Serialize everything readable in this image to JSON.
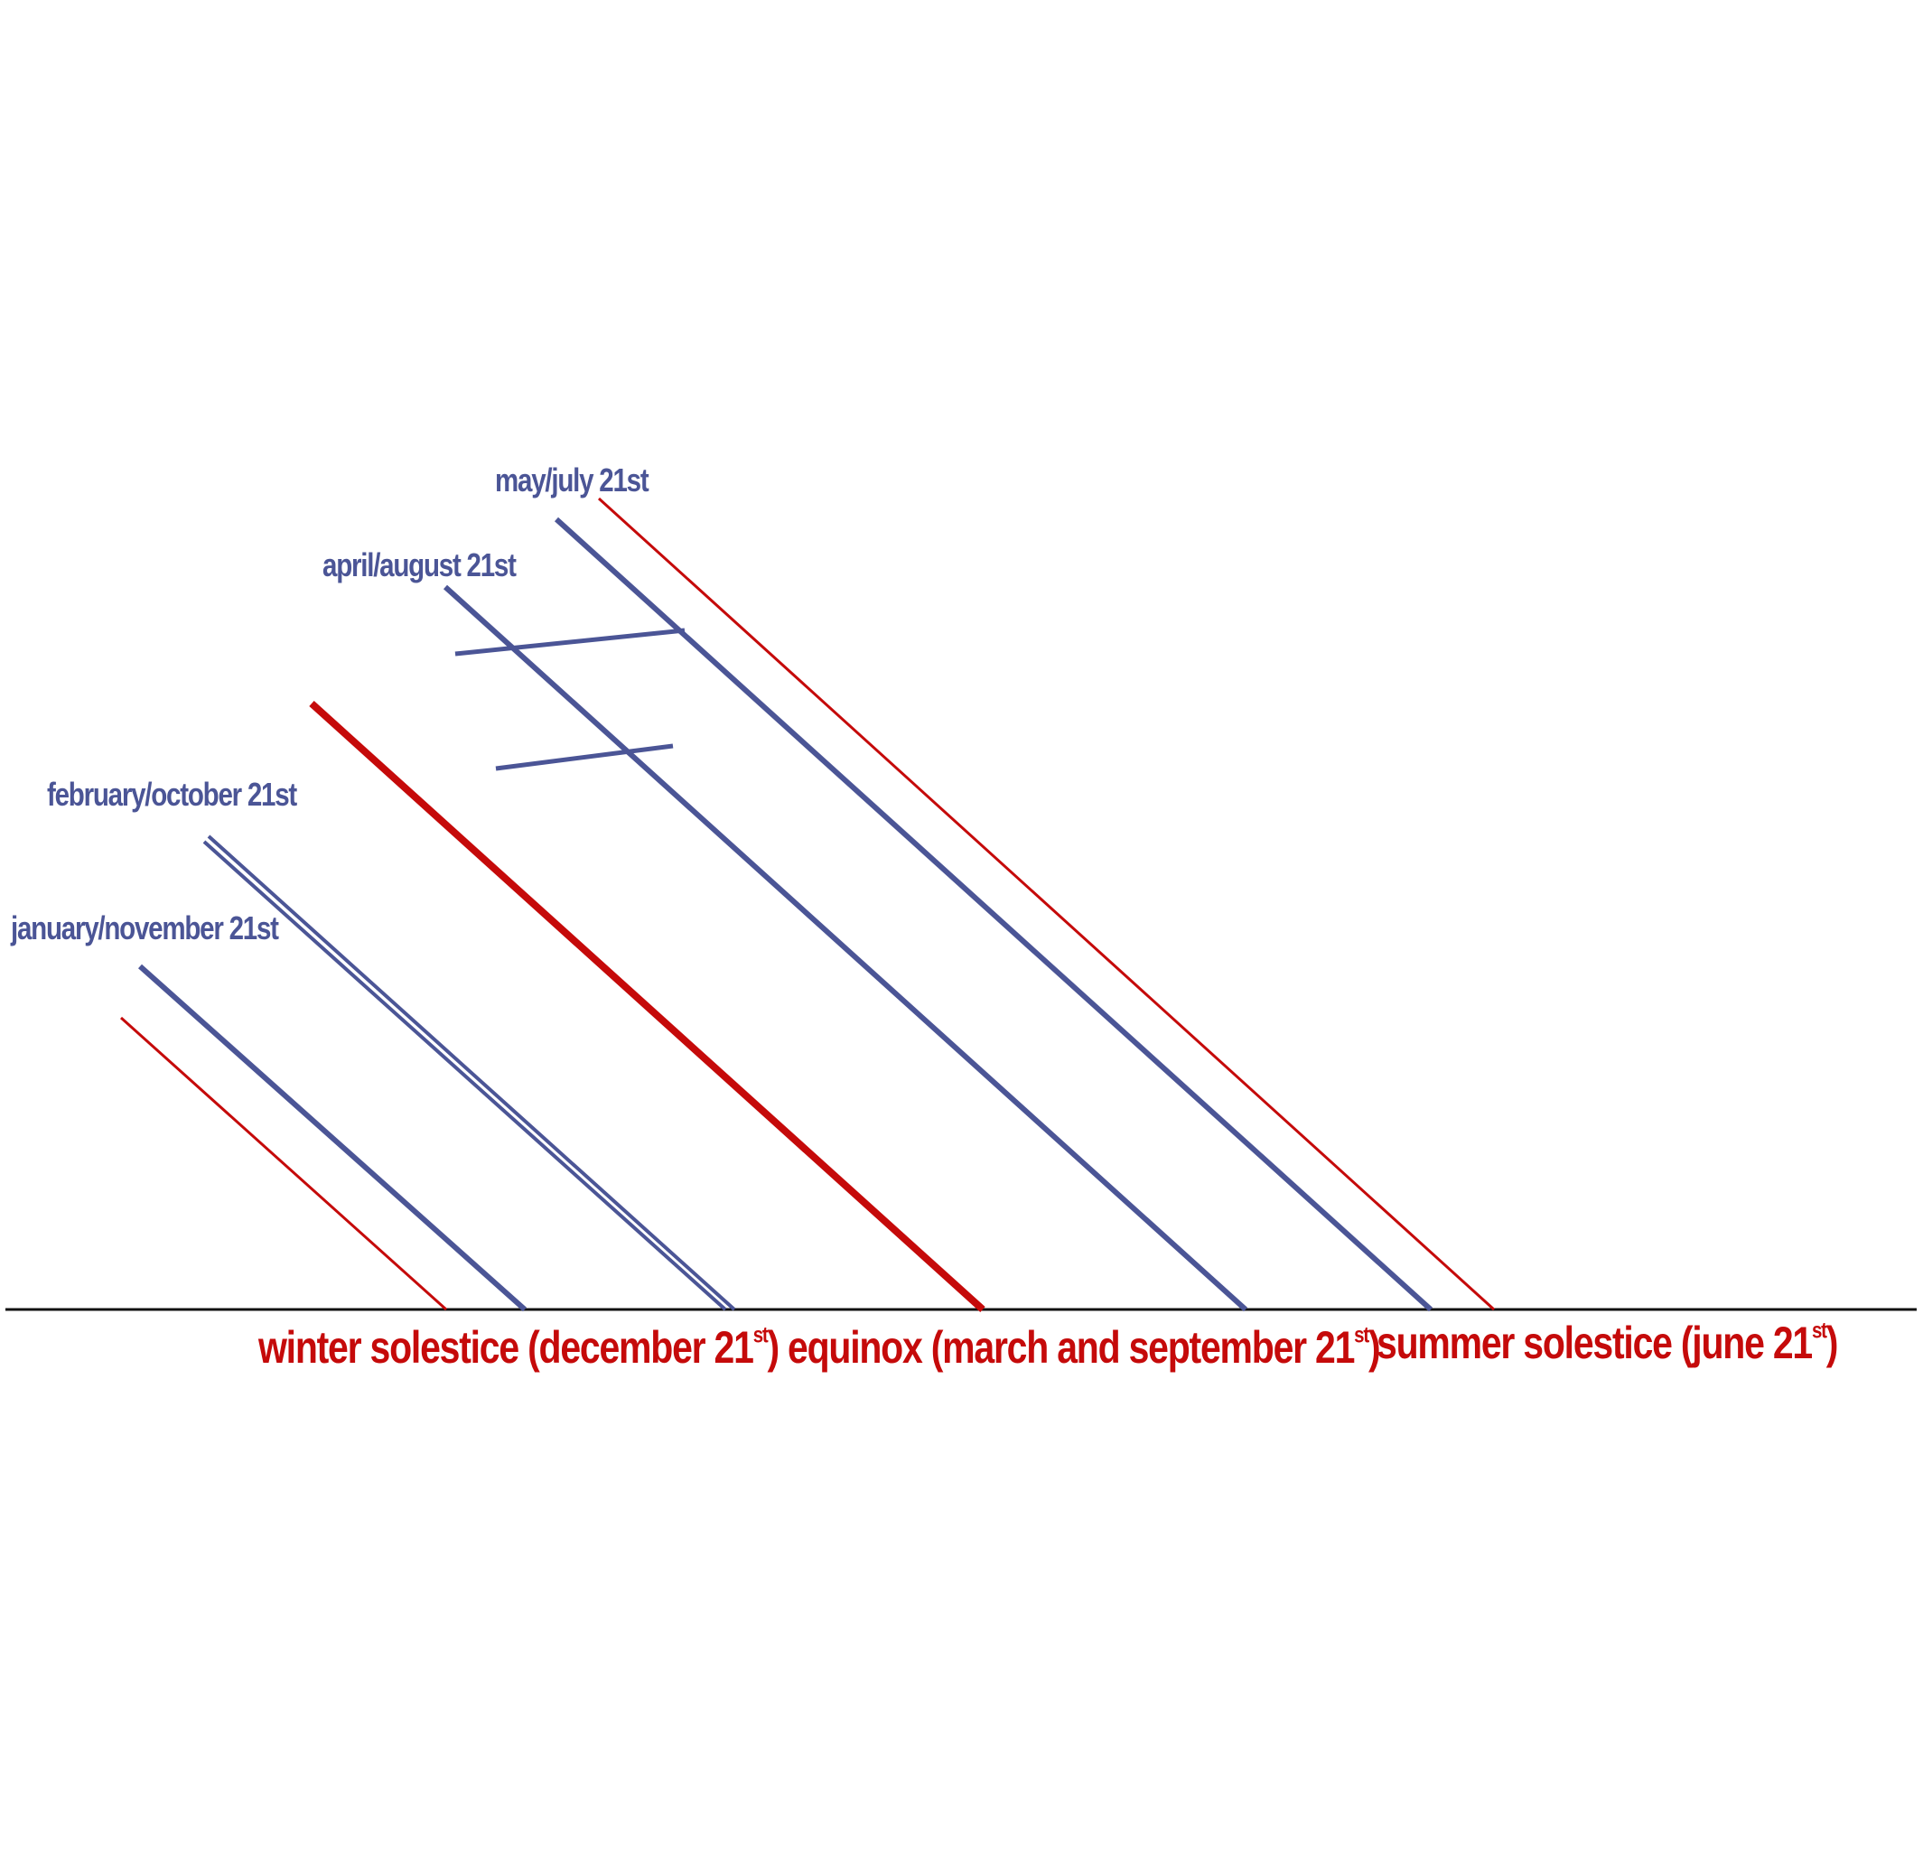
{
  "colors": {
    "blue": "#4b5596",
    "red": "#c50a0a",
    "ground": "#111111"
  },
  "month_labels": {
    "may_july": "may/july 21st",
    "april_august": "april/august 21st",
    "february_october": "february/october 21st",
    "january_november": "january/november 21st"
  },
  "event_labels": {
    "winter": {
      "text": "winter solestice (december 21",
      "sup": "st",
      "close": ")"
    },
    "equinox": {
      "text": "equinox (march and september 21",
      "sup": "st",
      "close": ")"
    },
    "summer": {
      "text": "summer solestice (june 21",
      "sup": "st",
      "close": ")"
    }
  }
}
